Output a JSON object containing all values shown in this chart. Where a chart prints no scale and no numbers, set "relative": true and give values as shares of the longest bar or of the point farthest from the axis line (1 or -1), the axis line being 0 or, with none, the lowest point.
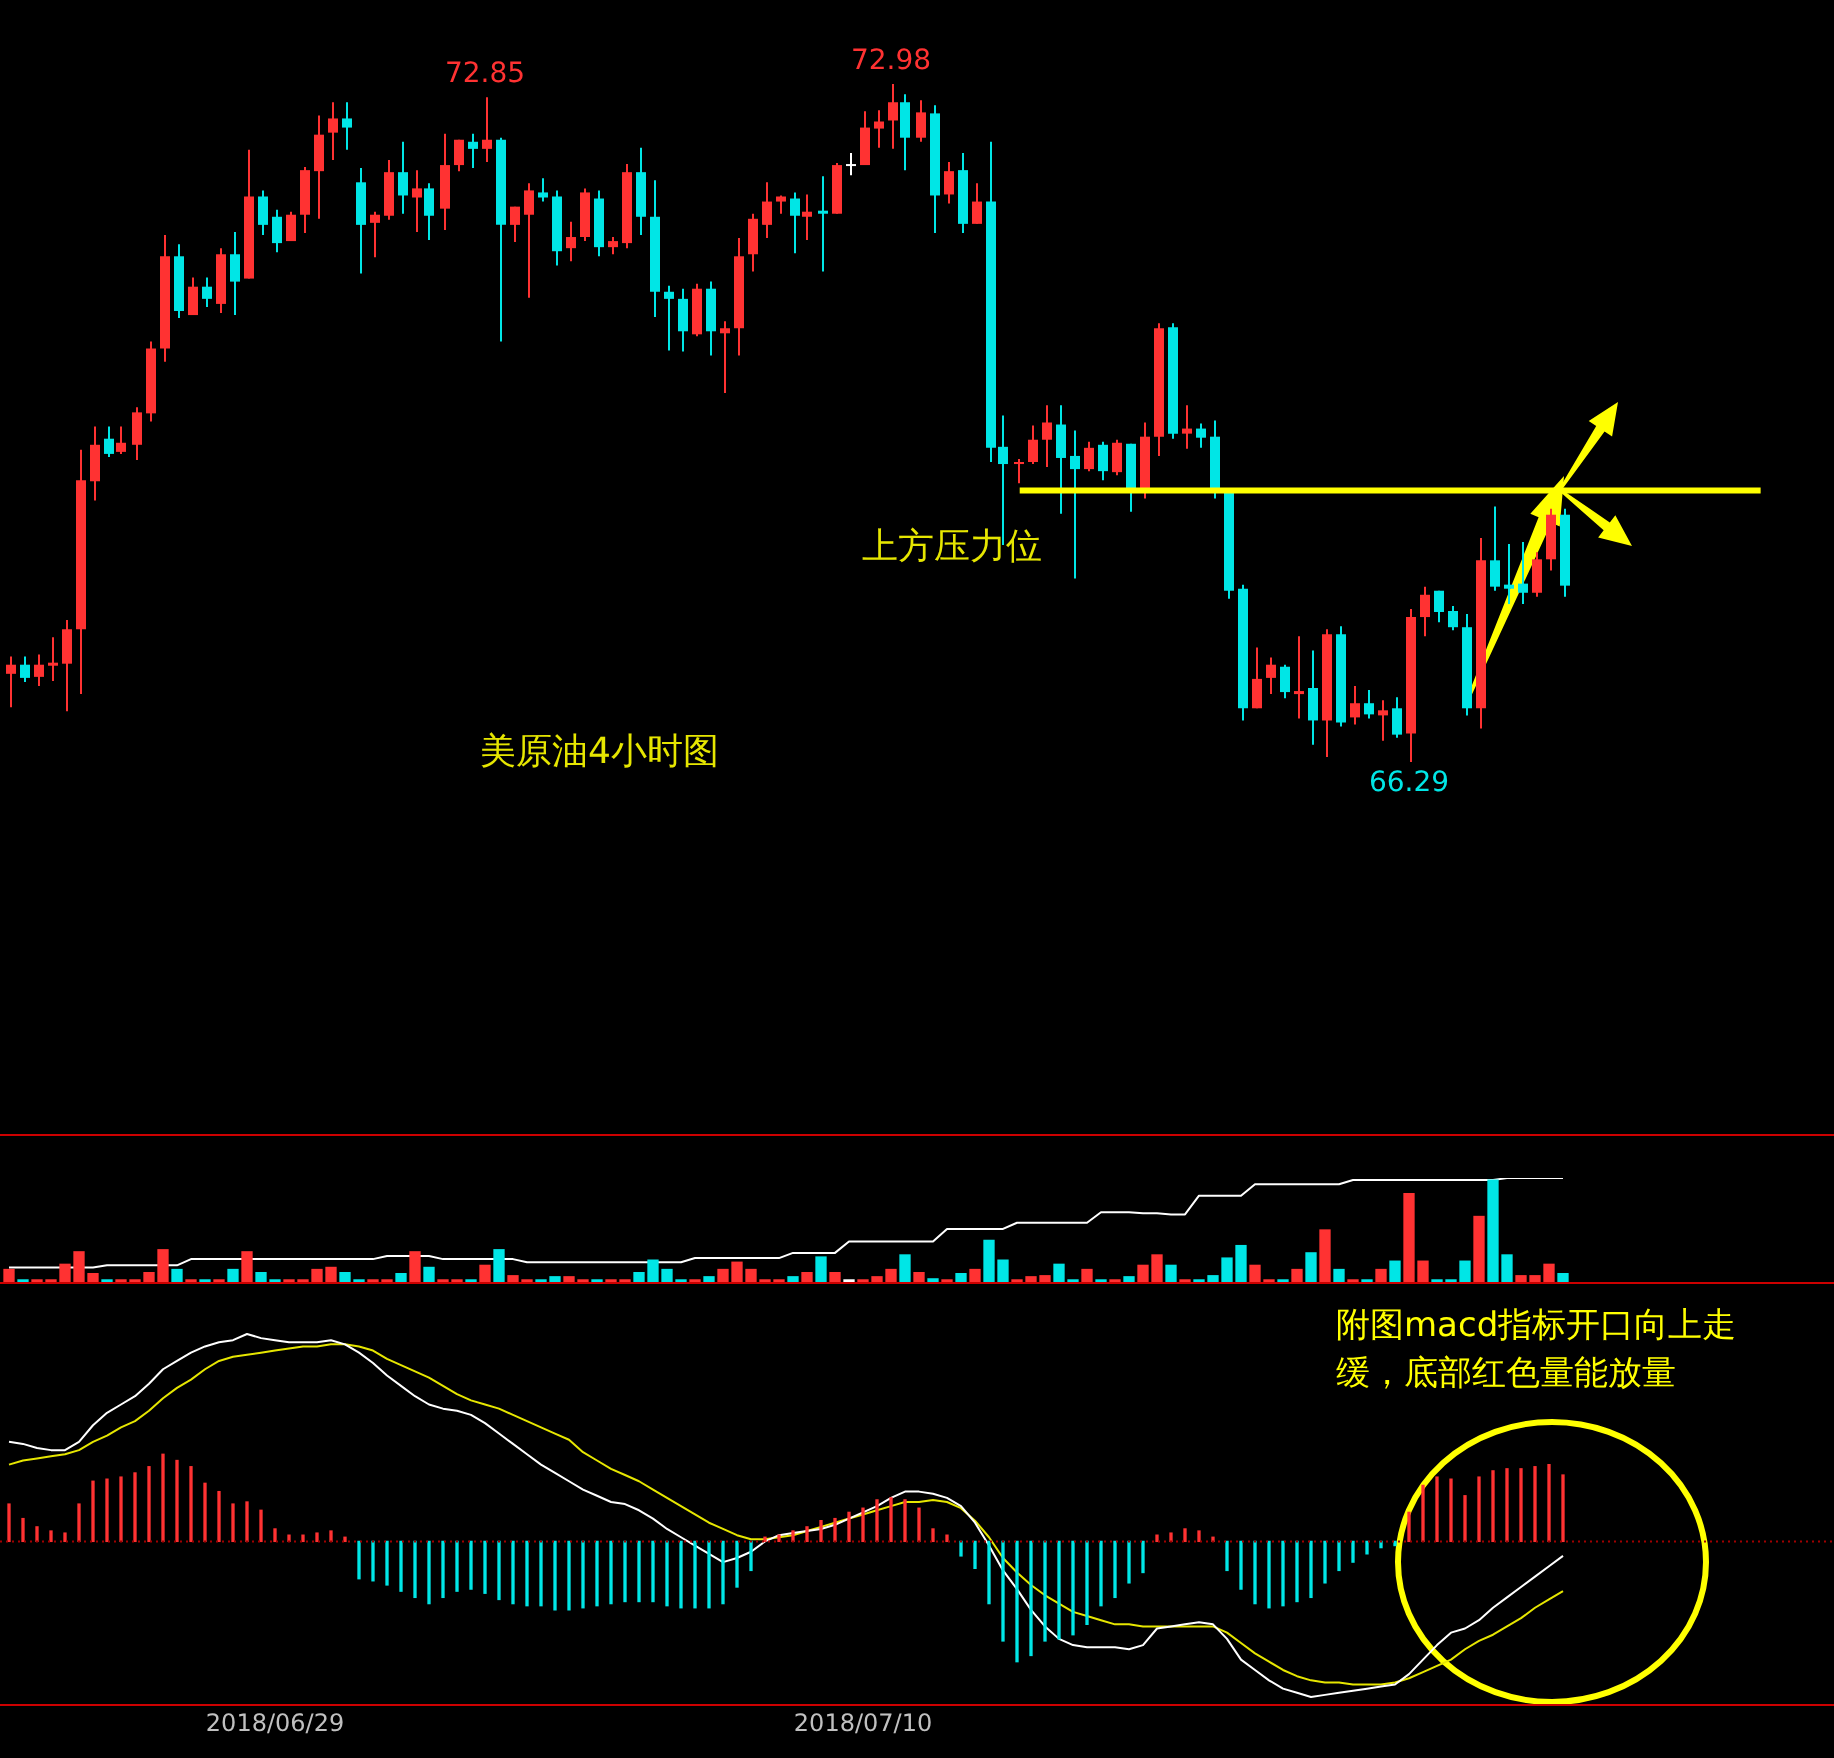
{
  "chart_data": [
    {
      "type": "candlestick",
      "categories": [
        null,
        null,
        null,
        null,
        null,
        null,
        null,
        null,
        null,
        null,
        null,
        null,
        null,
        null,
        null,
        null,
        null,
        null,
        null,
        null,
        null,
        null,
        null,
        null,
        null,
        null,
        null,
        null,
        null,
        null,
        null,
        null,
        null,
        null,
        null,
        null,
        null,
        null,
        null,
        null,
        null,
        null,
        null,
        null,
        null,
        null,
        null,
        null,
        null,
        null,
        null,
        null,
        null,
        null,
        null,
        null,
        null,
        null,
        null,
        null,
        null,
        null,
        null,
        null,
        null,
        null,
        null,
        null,
        null,
        null,
        null,
        null,
        null,
        null,
        null,
        null,
        null,
        null,
        null,
        null,
        null,
        null,
        null,
        null,
        null,
        null,
        null,
        null,
        null,
        null,
        null,
        null,
        null,
        null,
        null,
        null,
        null,
        null,
        null,
        null,
        null,
        null,
        null,
        null,
        null,
        null,
        null,
        null,
        null,
        null,
        null,
        null
      ],
      "ohlc": [
        [
          67.16,
          67.33,
          66.83,
          67.25
        ],
        [
          67.25,
          67.33,
          67.08,
          67.12
        ],
        [
          67.13,
          67.35,
          67.04,
          67.25
        ],
        [
          67.24,
          67.52,
          67.09,
          67.27
        ],
        [
          67.26,
          67.69,
          66.79,
          67.6
        ],
        [
          67.6,
          69.37,
          66.96,
          69.07
        ],
        [
          69.06,
          69.6,
          68.87,
          69.42
        ],
        [
          69.48,
          69.6,
          69.3,
          69.33
        ],
        [
          69.35,
          69.6,
          69.33,
          69.44
        ],
        [
          69.42,
          69.79,
          69.27,
          69.74
        ],
        [
          69.73,
          70.44,
          69.65,
          70.37
        ],
        [
          70.37,
          71.49,
          70.24,
          71.28
        ],
        [
          71.28,
          71.4,
          70.67,
          70.74
        ],
        [
          70.7,
          71.07,
          70.7,
          70.98
        ],
        [
          70.98,
          71.07,
          70.78,
          70.86
        ],
        [
          70.81,
          71.36,
          70.72,
          71.3
        ],
        [
          71.3,
          71.52,
          70.7,
          71.03
        ],
        [
          71.06,
          72.33,
          71.06,
          71.87
        ],
        [
          71.87,
          71.93,
          71.49,
          71.59
        ],
        [
          71.67,
          71.74,
          71.32,
          71.41
        ],
        [
          71.43,
          71.72,
          71.43,
          71.69
        ],
        [
          71.69,
          72.16,
          71.51,
          72.13
        ],
        [
          72.12,
          72.67,
          71.65,
          72.48
        ],
        [
          72.5,
          72.8,
          72.23,
          72.64
        ],
        [
          72.64,
          72.8,
          72.33,
          72.55
        ],
        [
          72.01,
          72.15,
          71.11,
          71.59
        ],
        [
          71.61,
          71.72,
          71.27,
          71.69
        ],
        [
          71.68,
          72.23,
          71.64,
          72.11
        ],
        [
          72.11,
          72.41,
          71.7,
          71.88
        ],
        [
          71.86,
          72.13,
          71.52,
          71.95
        ],
        [
          71.95,
          72.0,
          71.44,
          71.68
        ],
        [
          71.75,
          72.49,
          71.54,
          72.18
        ],
        [
          72.18,
          72.43,
          72.12,
          72.43
        ],
        [
          72.41,
          72.49,
          72.15,
          72.34
        ],
        [
          72.34,
          72.85,
          72.21,
          72.43
        ],
        [
          72.43,
          72.45,
          70.44,
          71.59
        ],
        [
          71.59,
          71.77,
          71.42,
          71.77
        ],
        [
          71.69,
          72.0,
          70.87,
          71.93
        ],
        [
          71.91,
          72.05,
          71.82,
          71.86
        ],
        [
          71.87,
          71.93,
          71.19,
          71.33
        ],
        [
          71.36,
          71.62,
          71.23,
          71.47
        ],
        [
          71.47,
          71.95,
          71.43,
          71.91
        ],
        [
          71.85,
          71.93,
          71.28,
          71.37
        ],
        [
          71.37,
          71.47,
          71.3,
          71.43
        ],
        [
          71.41,
          72.19,
          71.36,
          72.11
        ],
        [
          72.11,
          72.35,
          71.49,
          71.67
        ],
        [
          71.67,
          72.03,
          70.68,
          70.93
        ],
        [
          70.93,
          70.99,
          70.35,
          70.86
        ],
        [
          70.86,
          70.96,
          70.34,
          70.54
        ],
        [
          70.51,
          71.01,
          70.49,
          70.96
        ],
        [
          70.96,
          71.03,
          70.3,
          70.54
        ],
        [
          70.52,
          70.64,
          69.93,
          70.57
        ],
        [
          70.57,
          71.46,
          70.3,
          71.28
        ],
        [
          71.3,
          71.7,
          71.13,
          71.65
        ],
        [
          71.59,
          72.01,
          71.46,
          71.82
        ],
        [
          71.82,
          71.88,
          71.7,
          71.87
        ],
        [
          71.85,
          71.91,
          71.31,
          71.68
        ],
        [
          71.67,
          71.89,
          71.44,
          71.72
        ],
        [
          71.73,
          72.07,
          71.13,
          71.7
        ],
        [
          71.7,
          72.2,
          71.7,
          72.18
        ],
        [
          72.19,
          72.3,
          72.08,
          72.19
        ],
        [
          72.18,
          72.71,
          72.18,
          72.55
        ],
        [
          72.54,
          72.72,
          72.35,
          72.61
        ],
        [
          72.62,
          72.98,
          72.34,
          72.8
        ],
        [
          72.8,
          72.88,
          72.13,
          72.45
        ],
        [
          72.45,
          72.82,
          72.41,
          72.7
        ],
        [
          72.69,
          72.77,
          71.51,
          71.88
        ],
        [
          71.89,
          72.21,
          71.8,
          72.12
        ],
        [
          72.13,
          72.3,
          71.51,
          71.6
        ],
        [
          71.6,
          72.0,
          71.6,
          71.82
        ],
        [
          71.82,
          72.41,
          69.25,
          69.39
        ],
        [
          69.4,
          69.71,
          68.43,
          69.23
        ],
        [
          69.23,
          69.28,
          69.04,
          69.25
        ],
        [
          69.25,
          69.61,
          69.23,
          69.47
        ],
        [
          69.47,
          69.81,
          69.2,
          69.64
        ],
        [
          69.62,
          69.81,
          68.74,
          69.29
        ],
        [
          69.31,
          69.56,
          68.1,
          69.18
        ],
        [
          69.18,
          69.45,
          69.16,
          69.39
        ],
        [
          69.42,
          69.45,
          69.07,
          69.16
        ],
        [
          69.15,
          69.47,
          69.12,
          69.44
        ],
        [
          69.43,
          69.43,
          68.76,
          68.97
        ],
        [
          68.97,
          69.64,
          68.89,
          69.5
        ],
        [
          69.5,
          70.62,
          69.31,
          70.57
        ],
        [
          70.58,
          70.62,
          69.48,
          69.53
        ],
        [
          69.53,
          69.81,
          69.38,
          69.58
        ],
        [
          69.58,
          69.63,
          69.39,
          69.49
        ],
        [
          69.5,
          69.66,
          68.89,
          68.97
        ],
        [
          68.95,
          68.95,
          67.9,
          67.98
        ],
        [
          68.0,
          68.04,
          66.7,
          66.82
        ],
        [
          66.82,
          67.42,
          66.82,
          67.11
        ],
        [
          67.12,
          67.32,
          66.96,
          67.25
        ],
        [
          67.23,
          67.25,
          66.92,
          66.98
        ],
        [
          66.96,
          67.53,
          66.72,
          66.99
        ],
        [
          67.02,
          67.39,
          66.46,
          66.7
        ],
        [
          66.7,
          67.6,
          66.34,
          67.55
        ],
        [
          67.55,
          67.63,
          66.64,
          66.68
        ],
        [
          66.73,
          67.04,
          66.66,
          66.87
        ],
        [
          66.87,
          67.0,
          66.72,
          66.76
        ],
        [
          66.75,
          66.9,
          66.5,
          66.8
        ],
        [
          66.82,
          66.93,
          66.53,
          66.56
        ],
        [
          66.57,
          67.8,
          66.29,
          67.72
        ],
        [
          67.72,
          68.02,
          67.53,
          67.94
        ],
        [
          67.98,
          67.98,
          67.67,
          67.77
        ],
        [
          67.78,
          67.83,
          67.59,
          67.62
        ],
        [
          67.62,
          67.75,
          66.75,
          66.82
        ],
        [
          66.82,
          68.5,
          66.62,
          68.28
        ],
        [
          68.28,
          68.81,
          67.98,
          68.02
        ],
        [
          68.04,
          68.44,
          67.85,
          68.0
        ],
        [
          68.05,
          68.46,
          67.85,
          67.96
        ],
        [
          67.96,
          68.36,
          67.92,
          68.29
        ],
        [
          68.29,
          68.79,
          68.18,
          68.73
        ],
        [
          68.73,
          68.79,
          67.92,
          68.03
        ]
      ],
      "colors": [
        "#ff3232",
        "#00e6e6",
        "#ff3232",
        "#ff3232",
        "#ff3232",
        "#ff3232",
        "#ff3232",
        "#00e6e6",
        "#ff3232",
        "#ff3232",
        "#ff3232",
        "#ff3232",
        "#00e6e6",
        "#ff3232",
        "#00e6e6",
        "#ff3232",
        "#00e6e6",
        "#ff3232",
        "#00e6e6",
        "#00e6e6",
        "#ff3232",
        "#ff3232",
        "#ff3232",
        "#ff3232",
        "#00e6e6",
        "#00e6e6",
        "#ff3232",
        "#ff3232",
        "#00e6e6",
        "#ff3232",
        "#00e6e6",
        "#ff3232",
        "#ff3232",
        "#00e6e6",
        "#ff3232",
        "#00e6e6",
        "#ff3232",
        "#ff3232",
        "#00e6e6",
        "#00e6e6",
        "#ff3232",
        "#ff3232",
        "#00e6e6",
        "#ff3232",
        "#ff3232",
        "#00e6e6",
        "#00e6e6",
        "#00e6e6",
        "#00e6e6",
        "#ff3232",
        "#00e6e6",
        "#ff3232",
        "#ff3232",
        "#ff3232",
        "#ff3232",
        "#ff3232",
        "#00e6e6",
        "#ff3232",
        "#00e6e6",
        "#ff3232",
        "#ffffff",
        "#ff3232",
        "#ff3232",
        "#ff3232",
        "#00e6e6",
        "#ff3232",
        "#00e6e6",
        "#ff3232",
        "#00e6e6",
        "#ff3232",
        "#00e6e6",
        "#00e6e6",
        "#ff3232",
        "#ff3232",
        "#ff3232",
        "#00e6e6",
        "#00e6e6",
        "#ff3232",
        "#00e6e6",
        "#ff3232",
        "#00e6e6",
        "#ff3232",
        "#ff3232",
        "#00e6e6",
        "#ff3232",
        "#00e6e6",
        "#00e6e6",
        "#00e6e6",
        "#00e6e6",
        "#ff3232",
        "#ff3232",
        "#00e6e6",
        "#ff3232",
        "#00e6e6",
        "#ff3232",
        "#00e6e6",
        "#ff3232",
        "#00e6e6",
        "#ff3232",
        "#00e6e6",
        "#ff3232",
        "#ff3232",
        "#00e6e6",
        "#00e6e6",
        "#00e6e6",
        "#ff3232",
        "#00e6e6",
        "#00e6e6",
        "#00e6e6",
        "#ff3232",
        "#ff3232",
        "#00e6e6"
      ],
      "tick_labels": false,
      "ref_lines": [
        {
          "axis": "y",
          "value": 68.97,
          "label": "上方压力位",
          "color": "#ffff00"
        }
      ],
      "annotations": [
        "美原油4小时图",
        {
          "text": "72.85",
          "y": 72.85
        },
        {
          "text": "72.98",
          "y": 72.98
        },
        {
          "text": "66.29",
          "y": 66.29
        }
      ]
    },
    {
      "type": "bar",
      "relative": true,
      "categories": [
        null,
        null,
        null,
        null,
        null,
        null,
        null,
        null,
        null,
        null,
        null,
        null,
        null,
        null,
        null,
        null,
        null,
        null,
        null,
        null,
        null,
        null,
        null,
        null,
        null,
        null,
        null,
        null,
        null,
        null,
        null,
        null,
        null,
        null,
        null,
        null,
        null,
        null,
        null,
        null,
        null,
        null,
        null,
        null,
        null,
        null,
        null,
        null,
        null,
        null,
        null,
        null,
        null,
        null,
        null,
        null,
        null,
        null,
        null,
        null,
        null,
        null,
        null,
        null,
        null,
        null,
        null,
        null,
        null,
        null,
        null,
        null,
        null,
        null,
        null,
        null,
        null,
        null,
        null,
        null,
        null,
        null,
        null,
        null,
        null,
        null,
        null,
        null,
        null,
        null,
        null,
        null,
        null,
        null,
        null,
        null,
        null,
        null,
        null,
        null,
        null,
        null,
        null,
        null,
        null,
        null,
        null,
        null,
        null,
        null,
        null,
        null
      ],
      "series": [
        {
          "type": "bar",
          "colors": [
            "#ff3232",
            "#00e6e6",
            "#ff3232",
            "#ff3232",
            "#ff3232",
            "#ff3232",
            "#ff3232",
            "#00e6e6",
            "#ff3232",
            "#ff3232",
            "#ff3232",
            "#ff3232",
            "#00e6e6",
            "#ff3232",
            "#00e6e6",
            "#ff3232",
            "#00e6e6",
            "#ff3232",
            "#00e6e6",
            "#00e6e6",
            "#ff3232",
            "#ff3232",
            "#ff3232",
            "#ff3232",
            "#00e6e6",
            "#00e6e6",
            "#ff3232",
            "#ff3232",
            "#00e6e6",
            "#ff3232",
            "#00e6e6",
            "#ff3232",
            "#ff3232",
            "#00e6e6",
            "#ff3232",
            "#00e6e6",
            "#ff3232",
            "#ff3232",
            "#00e6e6",
            "#00e6e6",
            "#ff3232",
            "#ff3232",
            "#00e6e6",
            "#ff3232",
            "#ff3232",
            "#00e6e6",
            "#00e6e6",
            "#00e6e6",
            "#00e6e6",
            "#ff3232",
            "#00e6e6",
            "#ff3232",
            "#ff3232",
            "#ff3232",
            "#ff3232",
            "#ff3232",
            "#00e6e6",
            "#ff3232",
            "#00e6e6",
            "#ff3232",
            "#ffffff",
            "#ff3232",
            "#ff3232",
            "#ff3232",
            "#00e6e6",
            "#ff3232",
            "#00e6e6",
            "#ff3232",
            "#00e6e6",
            "#ff3232",
            "#00e6e6",
            "#00e6e6",
            "#ff3232",
            "#ff3232",
            "#ff3232",
            "#00e6e6",
            "#00e6e6",
            "#ff3232",
            "#00e6e6",
            "#ff3232",
            "#00e6e6",
            "#ff3232",
            "#ff3232",
            "#00e6e6",
            "#ff3232",
            "#00e6e6",
            "#00e6e6",
            "#00e6e6",
            "#00e6e6",
            "#ff3232",
            "#ff3232",
            "#00e6e6",
            "#ff3232",
            "#00e6e6",
            "#ff3232",
            "#00e6e6",
            "#ff3232",
            "#00e6e6",
            "#ff3232",
            "#00e6e6",
            "#ff3232",
            "#ff3232",
            "#00e6e6",
            "#00e6e6",
            "#00e6e6",
            "#ff3232",
            "#00e6e6",
            "#00e6e6",
            "#ff3232",
            "#ff3232",
            "#ff3232",
            "#00e6e6"
          ],
          "values": [
            0.12,
            0.02,
            0.02,
            0.02,
            0.17,
            0.29,
            0.08,
            0.02,
            0.02,
            0.02,
            0.09,
            0.31,
            0.12,
            0.02,
            0.02,
            0.02,
            0.12,
            0.29,
            0.09,
            0.02,
            0.02,
            0.02,
            0.12,
            0.14,
            0.09,
            0.02,
            0.02,
            0.02,
            0.08,
            0.29,
            0.14,
            0.02,
            0.02,
            0.02,
            0.16,
            0.31,
            0.06,
            0.02,
            0.02,
            0.05,
            0.05,
            0.02,
            0.02,
            0.02,
            0.02,
            0.09,
            0.21,
            0.12,
            0.02,
            0.02,
            0.05,
            0.12,
            0.19,
            0.12,
            0.02,
            0.02,
            0.05,
            0.09,
            0.24,
            0.09,
            0.02,
            0.02,
            0.05,
            0.12,
            0.26,
            0.09,
            0.03,
            0.02,
            0.08,
            0.12,
            0.4,
            0.21,
            0.02,
            0.05,
            0.06,
            0.17,
            0.02,
            0.12,
            0.02,
            0.02,
            0.05,
            0.16,
            0.26,
            0.16,
            0.02,
            0.02,
            0.06,
            0.23,
            0.35,
            0.16,
            0.02,
            0.02,
            0.12,
            0.28,
            0.5,
            0.12,
            0.02,
            0.02,
            0.12,
            0.2,
            0.85,
            0.2,
            0.02,
            0.02,
            0.2,
            0.63,
            0.98,
            0.26,
            0.06,
            0.06,
            0.17,
            0.08
          ]
        },
        {
          "type": "line",
          "color": "#ffffff",
          "values": [
            0.14,
            0.14,
            0.14,
            0.14,
            0.14,
            0.14,
            0.14,
            0.16,
            0.16,
            0.16,
            0.16,
            0.16,
            0.16,
            0.22,
            0.22,
            0.22,
            0.22,
            0.22,
            0.22,
            0.22,
            0.22,
            0.22,
            0.22,
            0.22,
            0.22,
            0.22,
            0.22,
            0.25,
            0.25,
            0.25,
            0.25,
            0.22,
            0.22,
            0.22,
            0.22,
            0.22,
            0.22,
            0.19,
            0.19,
            0.19,
            0.19,
            0.19,
            0.19,
            0.19,
            0.19,
            0.19,
            0.19,
            0.19,
            0.19,
            0.23,
            0.23,
            0.23,
            0.23,
            0.23,
            0.23,
            0.23,
            0.28,
            0.28,
            0.28,
            0.28,
            0.39,
            0.39,
            0.39,
            0.39,
            0.39,
            0.39,
            0.39,
            0.51,
            0.51,
            0.51,
            0.51,
            0.51,
            0.57,
            0.57,
            0.57,
            0.57,
            0.57,
            0.57,
            0.67,
            0.67,
            0.67,
            0.66,
            0.66,
            0.65,
            0.65,
            0.83,
            0.83,
            0.83,
            0.83,
            0.94,
            0.94,
            0.94,
            0.94,
            0.94,
            0.94,
            0.94,
            0.98,
            0.98,
            0.98,
            0.98,
            0.98,
            0.98,
            0.98,
            0.98,
            0.98,
            0.98,
            0.98,
            1.0,
            1.0,
            1.0,
            1.0,
            1.0
          ]
        }
      ],
      "tick_labels": false
    },
    {
      "type": "bar",
      "relative": true,
      "categories": [
        null,
        null,
        null,
        null,
        null,
        null,
        null,
        null,
        null,
        null,
        null,
        null,
        null,
        null,
        null,
        null,
        null,
        null,
        null,
        "2018/06/29",
        null,
        null,
        null,
        null,
        null,
        null,
        null,
        null,
        null,
        null,
        null,
        null,
        null,
        null,
        null,
        null,
        null,
        null,
        null,
        null,
        null,
        null,
        null,
        null,
        null,
        null,
        null,
        null,
        null,
        null,
        null,
        null,
        null,
        null,
        null,
        null,
        null,
        null,
        null,
        null,
        null,
        "2018/07/10",
        null,
        null,
        null,
        null,
        null,
        null,
        null,
        null,
        null,
        null,
        null,
        null,
        null,
        null,
        null,
        null,
        null,
        null,
        null,
        null,
        null,
        null,
        null,
        null,
        null,
        null,
        null,
        null,
        null,
        null,
        null,
        null,
        null,
        null,
        null,
        null,
        null,
        null,
        null,
        null,
        null,
        null,
        null,
        null,
        null,
        null,
        null,
        null,
        null,
        null
      ],
      "series": [
        {
          "type": "bar",
          "colors": [
            "#ff3232",
            "#ff3232",
            "#ff3232",
            "#ff3232",
            "#ff3232",
            "#ff3232",
            "#ff3232",
            "#ff3232",
            "#ff3232",
            "#ff3232",
            "#ff3232",
            "#ff3232",
            "#ff3232",
            "#ff3232",
            "#ff3232",
            "#ff3232",
            "#ff3232",
            "#ff3232",
            "#ff3232",
            "#ff3232",
            "#ff3232",
            "#ff3232",
            "#ff3232",
            "#ff3232",
            "#ff3232",
            "#00e6e6",
            "#00e6e6",
            "#00e6e6",
            "#00e6e6",
            "#00e6e6",
            "#00e6e6",
            "#00e6e6",
            "#00e6e6",
            "#00e6e6",
            "#00e6e6",
            "#00e6e6",
            "#00e6e6",
            "#00e6e6",
            "#00e6e6",
            "#00e6e6",
            "#00e6e6",
            "#00e6e6",
            "#00e6e6",
            "#00e6e6",
            "#00e6e6",
            "#00e6e6",
            "#00e6e6",
            "#00e6e6",
            "#00e6e6",
            "#00e6e6",
            "#00e6e6",
            "#00e6e6",
            "#00e6e6",
            "#00e6e6",
            "#ff3232",
            "#ff3232",
            "#ff3232",
            "#ff3232",
            "#ff3232",
            "#ff3232",
            "#ff3232",
            "#ff3232",
            "#ff3232",
            "#ff3232",
            "#ff3232",
            "#ff3232",
            "#ff3232",
            "#ff3232",
            "#00e6e6",
            "#00e6e6",
            "#00e6e6",
            "#00e6e6",
            "#00e6e6",
            "#00e6e6",
            "#00e6e6",
            "#00e6e6",
            "#00e6e6",
            "#00e6e6",
            "#00e6e6",
            "#00e6e6",
            "#00e6e6",
            "#00e6e6",
            "#ff3232",
            "#ff3232",
            "#ff3232",
            "#ff3232",
            "#ff3232",
            "#00e6e6",
            "#00e6e6",
            "#00e6e6",
            "#00e6e6",
            "#00e6e6",
            "#00e6e6",
            "#00e6e6",
            "#00e6e6",
            "#00e6e6",
            "#00e6e6",
            "#00e6e6",
            "#00e6e6",
            "#00e6e6",
            "#ff3232",
            "#ff3232",
            "#ff3232",
            "#ff3232",
            "#ff3232",
            "#ff3232",
            "#ff3232",
            "#ff3232",
            "#ff3232",
            "#ff3232",
            "#ff3232",
            "#ff3232"
          ],
          "values": [
            0.18,
            0.11,
            0.07,
            0.05,
            0.04,
            0.18,
            0.29,
            0.3,
            0.31,
            0.33,
            0.36,
            0.42,
            0.39,
            0.36,
            0.28,
            0.24,
            0.18,
            0.19,
            0.15,
            0.06,
            0.03,
            0.03,
            0.04,
            0.05,
            0.02,
            -0.18,
            -0.19,
            -0.21,
            -0.24,
            -0.27,
            -0.3,
            -0.27,
            -0.24,
            -0.23,
            -0.25,
            -0.28,
            -0.3,
            -0.31,
            -0.31,
            -0.33,
            -0.33,
            -0.32,
            -0.31,
            -0.3,
            -0.29,
            -0.29,
            -0.29,
            -0.31,
            -0.32,
            -0.32,
            -0.32,
            -0.3,
            -0.22,
            -0.14,
            0.02,
            0.03,
            0.05,
            0.07,
            0.1,
            0.11,
            0.14,
            0.16,
            0.2,
            0.21,
            0.2,
            0.16,
            0.06,
            0.03,
            -0.07,
            -0.13,
            -0.3,
            -0.48,
            -0.58,
            -0.55,
            -0.48,
            -0.47,
            -0.45,
            -0.4,
            -0.31,
            -0.27,
            -0.2,
            -0.15,
            0.03,
            0.04,
            0.06,
            0.05,
            0.02,
            -0.14,
            -0.23,
            -0.3,
            -0.32,
            -0.31,
            -0.29,
            -0.27,
            -0.2,
            -0.14,
            -0.1,
            -0.06,
            -0.03,
            -0.02,
            0.14,
            0.27,
            0.31,
            0.3,
            0.22,
            0.31,
            0.34,
            0.35,
            0.35,
            0.36,
            0.37,
            0.32
          ]
        },
        {
          "type": "line",
          "color": "#ffffff",
          "values": [
            0.48,
            0.47,
            0.45,
            0.44,
            0.44,
            0.48,
            0.56,
            0.62,
            0.66,
            0.7,
            0.76,
            0.83,
            0.87,
            0.91,
            0.94,
            0.96,
            0.97,
            1.0,
            0.98,
            0.97,
            0.96,
            0.96,
            0.96,
            0.97,
            0.95,
            0.91,
            0.86,
            0.8,
            0.75,
            0.7,
            0.66,
            0.64,
            0.63,
            0.61,
            0.57,
            0.52,
            0.47,
            0.42,
            0.37,
            0.33,
            0.29,
            0.25,
            0.22,
            0.19,
            0.18,
            0.15,
            0.11,
            0.06,
            0.02,
            -0.02,
            -0.06,
            -0.1,
            -0.08,
            -0.05,
            0.0,
            0.03,
            0.04,
            0.05,
            0.06,
            0.08,
            0.11,
            0.14,
            0.17,
            0.21,
            0.24,
            0.24,
            0.23,
            0.21,
            0.17,
            0.09,
            -0.02,
            -0.14,
            -0.23,
            -0.33,
            -0.41,
            -0.47,
            -0.5,
            -0.51,
            -0.51,
            -0.51,
            -0.52,
            -0.5,
            -0.42,
            -0.41,
            -0.4,
            -0.39,
            -0.4,
            -0.47,
            -0.57,
            -0.62,
            -0.67,
            -0.71,
            -0.73,
            -0.75,
            -0.74,
            -0.73,
            -0.72,
            -0.71,
            -0.7,
            -0.69,
            -0.64,
            -0.57,
            -0.5,
            -0.44,
            -0.42,
            -0.38,
            -0.32,
            -0.27,
            -0.22,
            -0.17,
            -0.12,
            -0.07
          ]
        },
        {
          "type": "line",
          "color": "#e6e600",
          "values": [
            0.37,
            0.39,
            0.4,
            0.41,
            0.42,
            0.44,
            0.48,
            0.51,
            0.55,
            0.58,
            0.63,
            0.69,
            0.74,
            0.78,
            0.83,
            0.87,
            0.89,
            0.9,
            0.91,
            0.92,
            0.93,
            0.94,
            0.94,
            0.95,
            0.95,
            0.94,
            0.92,
            0.88,
            0.85,
            0.82,
            0.79,
            0.75,
            0.71,
            0.68,
            0.66,
            0.64,
            0.61,
            0.58,
            0.55,
            0.52,
            0.49,
            0.43,
            0.39,
            0.35,
            0.32,
            0.29,
            0.25,
            0.21,
            0.17,
            0.13,
            0.09,
            0.06,
            0.03,
            0.01,
            0.01,
            0.02,
            0.03,
            0.05,
            0.07,
            0.09,
            0.11,
            0.13,
            0.15,
            0.17,
            0.19,
            0.19,
            0.2,
            0.19,
            0.16,
            0.1,
            0.02,
            -0.08,
            -0.15,
            -0.21,
            -0.26,
            -0.3,
            -0.34,
            -0.36,
            -0.38,
            -0.4,
            -0.4,
            -0.41,
            -0.41,
            -0.41,
            -0.41,
            -0.41,
            -0.41,
            -0.44,
            -0.49,
            -0.54,
            -0.58,
            -0.62,
            -0.65,
            -0.67,
            -0.68,
            -0.68,
            -0.69,
            -0.69,
            -0.69,
            -0.68,
            -0.66,
            -0.63,
            -0.6,
            -0.57,
            -0.52,
            -0.48,
            -0.45,
            -0.41,
            -0.37,
            -0.32,
            -0.28,
            -0.24
          ]
        }
      ],
      "tick_labels": "x",
      "ref_lines": [
        {
          "axis": "y",
          "value": 0,
          "color": "#a00000",
          "line_style": "dotted"
        }
      ],
      "annotations": [
        "附图macd指标开口向上走缓，底部红色量能放量"
      ]
    }
  ]
}
